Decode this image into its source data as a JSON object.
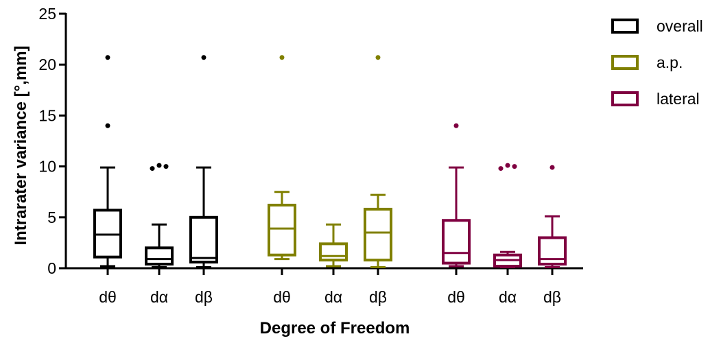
{
  "chart_data": {
    "type": "box",
    "xlabel": "Degree of Freedom",
    "ylabel": "Intrarater variance [°,mm]",
    "ylim": [
      0,
      25
    ],
    "yticks": [
      0,
      5,
      10,
      15,
      20,
      25
    ],
    "grid": false,
    "legend_position": "top-right",
    "groups": [
      {
        "series": "overall",
        "color": "#000000",
        "boxes": [
          {
            "label": "dθ",
            "whisker_low": 0.2,
            "q1": 1.1,
            "median": 3.3,
            "q3": 5.7,
            "whisker_high": 9.9,
            "outliers": [
              14.0,
              20.7
            ]
          },
          {
            "label": "dα",
            "whisker_low": 0.1,
            "q1": 0.4,
            "median": 0.9,
            "q3": 2.0,
            "whisker_high": 4.3,
            "outliers": [
              9.8,
              10.1,
              10.0
            ]
          },
          {
            "label": "dβ",
            "whisker_low": 0.1,
            "q1": 0.6,
            "median": 1.0,
            "q3": 5.0,
            "whisker_high": 9.9,
            "outliers": [
              20.7
            ]
          }
        ]
      },
      {
        "series": "a.p.",
        "color": "#808000",
        "boxes": [
          {
            "label": "dθ",
            "whisker_low": 0.9,
            "q1": 1.3,
            "median": 3.9,
            "q3": 6.2,
            "whisker_high": 7.5,
            "outliers": [
              20.7
            ]
          },
          {
            "label": "dα",
            "whisker_low": 0.2,
            "q1": 0.8,
            "median": 1.2,
            "q3": 2.4,
            "whisker_high": 4.3,
            "outliers": []
          },
          {
            "label": "dβ",
            "whisker_low": 0.1,
            "q1": 0.8,
            "median": 3.5,
            "q3": 5.8,
            "whisker_high": 7.2,
            "outliers": [
              20.7
            ]
          }
        ]
      },
      {
        "series": "lateral",
        "color": "#7f0040",
        "boxes": [
          {
            "label": "dθ",
            "whisker_low": 0.2,
            "q1": 0.5,
            "median": 1.5,
            "q3": 4.7,
            "whisker_high": 9.9,
            "outliers": [
              14.0
            ]
          },
          {
            "label": "dα",
            "whisker_low": 0.1,
            "q1": 0.2,
            "median": 0.8,
            "q3": 1.3,
            "whisker_high": 1.6,
            "outliers": [
              9.8,
              10.1,
              10.0
            ]
          },
          {
            "label": "dβ",
            "whisker_low": 0.1,
            "q1": 0.4,
            "median": 0.9,
            "q3": 3.0,
            "whisker_high": 5.1,
            "outliers": [
              9.9
            ]
          }
        ]
      }
    ],
    "legend": [
      {
        "label": "overall",
        "color": "#000000"
      },
      {
        "label": "a.p.",
        "color": "#808000"
      },
      {
        "label": "lateral",
        "color": "#7f0040"
      }
    ]
  }
}
